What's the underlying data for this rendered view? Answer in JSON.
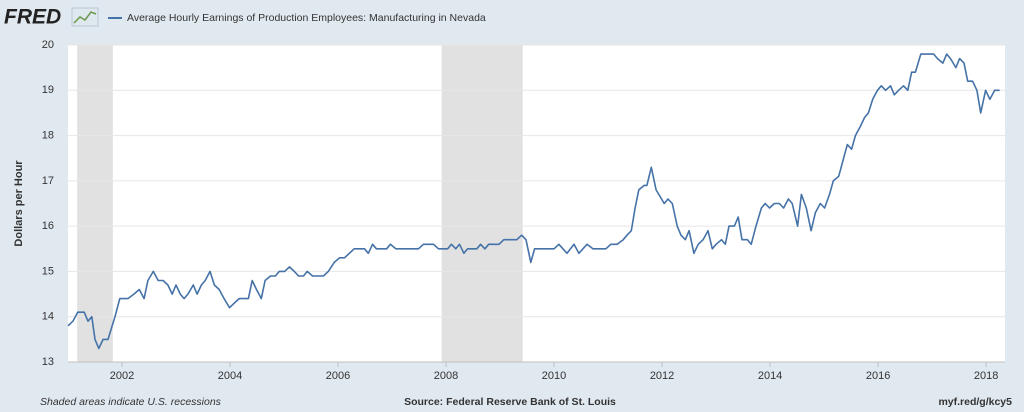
{
  "chart_data": {
    "type": "line",
    "logo": "FRED",
    "ylabel": "Dollars per Hour",
    "footnote": "Shaded areas indicate U.S. recessions",
    "source": "Source: Federal Reserve Bank of St. Louis",
    "url": "myf.red/g/kcy5",
    "xlim": [
      2001.0,
      2018.35
    ],
    "xticks": [
      2002,
      2004,
      2006,
      2008,
      2010,
      2012,
      2014,
      2016,
      2018
    ],
    "ylim": [
      13,
      20
    ],
    "yticks": [
      13,
      14,
      15,
      16,
      17,
      18,
      19,
      20
    ],
    "grid": true,
    "recessions": [
      [
        2001.17,
        2001.83
      ],
      [
        2007.92,
        2009.42
      ]
    ],
    "recession_color": "#e1e1e1",
    "x": [
      2001.0,
      2001.09,
      2001.18,
      2001.3,
      2001.37,
      2001.44,
      2001.5,
      2001.57,
      2001.65,
      2001.74,
      2001.87,
      2001.96,
      2002.11,
      2002.22,
      2002.32,
      2002.41,
      2002.48,
      2002.58,
      2002.67,
      2002.76,
      2002.85,
      2002.93,
      2003.0,
      2003.08,
      2003.15,
      2003.22,
      2003.32,
      2003.39,
      2003.47,
      2003.54,
      2003.63,
      2003.71,
      2003.8,
      2003.89,
      2003.99,
      2004.08,
      2004.17,
      2004.34,
      2004.41,
      2004.49,
      2004.58,
      2004.65,
      2004.75,
      2004.84,
      2004.91,
      2005.01,
      2005.1,
      2005.19,
      2005.27,
      2005.36,
      2005.43,
      2005.53,
      2005.73,
      2005.82,
      2005.93,
      2006.03,
      2006.12,
      2006.21,
      2006.3,
      2006.49,
      2006.56,
      2006.64,
      2006.71,
      2006.9,
      2006.97,
      2007.07,
      2007.49,
      2007.58,
      2007.77,
      2007.86,
      2007.96,
      2008.03,
      2008.1,
      2008.18,
      2008.25,
      2008.33,
      2008.4,
      2008.57,
      2008.64,
      2008.72,
      2008.79,
      2008.98,
      2009.07,
      2009.31,
      2009.4,
      2009.48,
      2009.57,
      2009.64,
      2010.0,
      2010.09,
      2010.24,
      2010.37,
      2010.46,
      2010.61,
      2010.72,
      2010.96,
      2011.05,
      2011.17,
      2011.28,
      2011.35,
      2011.43,
      2011.5,
      2011.57,
      2011.67,
      2011.72,
      2011.8,
      2011.89,
      2011.94,
      2012.04,
      2012.11,
      2012.19,
      2012.28,
      2012.35,
      2012.43,
      2012.5,
      2012.59,
      2012.67,
      2012.76,
      2012.85,
      2012.93,
      2013.0,
      2013.1,
      2013.17,
      2013.24,
      2013.34,
      2013.41,
      2013.48,
      2013.58,
      2013.65,
      2013.74,
      2013.84,
      2013.91,
      2013.99,
      2014.08,
      2014.17,
      2014.25,
      2014.34,
      2014.41,
      2014.51,
      2014.58,
      2014.67,
      2014.76,
      2014.84,
      2014.93,
      2015.01,
      2015.1,
      2015.17,
      2015.27,
      2015.34,
      2015.43,
      2015.51,
      2015.58,
      2015.67,
      2015.75,
      2015.82,
      2015.9,
      2015.99,
      2016.06,
      2016.14,
      2016.23,
      2016.3,
      2016.38,
      2016.47,
      2016.55,
      2016.62,
      2016.69,
      2016.79,
      2016.95,
      2017.03,
      2017.1,
      2017.2,
      2017.27,
      2017.34,
      2017.44,
      2017.51,
      2017.59,
      2017.66,
      2017.75,
      2017.83,
      2017.9,
      2017.99,
      2018.07,
      2018.16,
      2018.25
    ],
    "series": [
      {
        "name": "Average Hourly Earnings of Production Employees: Manufacturing in Nevada",
        "color": "#4572a7",
        "values": [
          13.8,
          13.9,
          14.1,
          14.1,
          13.9,
          14.0,
          13.5,
          13.3,
          13.5,
          13.5,
          14.0,
          14.4,
          14.4,
          14.5,
          14.6,
          14.4,
          14.8,
          15.0,
          14.8,
          14.8,
          14.7,
          14.5,
          14.7,
          14.5,
          14.4,
          14.5,
          14.7,
          14.5,
          14.7,
          14.8,
          15.0,
          14.7,
          14.6,
          14.4,
          14.2,
          14.3,
          14.4,
          14.4,
          14.8,
          14.6,
          14.4,
          14.8,
          14.9,
          14.9,
          15.0,
          15.0,
          15.1,
          15.0,
          14.9,
          14.9,
          15.0,
          14.9,
          14.9,
          15.0,
          15.2,
          15.3,
          15.3,
          15.4,
          15.5,
          15.5,
          15.4,
          15.6,
          15.5,
          15.5,
          15.6,
          15.5,
          15.5,
          15.6,
          15.6,
          15.5,
          15.5,
          15.5,
          15.6,
          15.5,
          15.6,
          15.4,
          15.5,
          15.5,
          15.6,
          15.5,
          15.6,
          15.6,
          15.7,
          15.7,
          15.8,
          15.7,
          15.2,
          15.5,
          15.5,
          15.6,
          15.4,
          15.6,
          15.4,
          15.6,
          15.5,
          15.5,
          15.6,
          15.6,
          15.7,
          15.8,
          15.9,
          16.4,
          16.8,
          16.9,
          16.9,
          17.3,
          16.8,
          16.7,
          16.5,
          16.6,
          16.5,
          16.0,
          15.8,
          15.7,
          15.9,
          15.4,
          15.6,
          15.7,
          15.9,
          15.5,
          15.6,
          15.7,
          15.6,
          16.0,
          16.0,
          16.2,
          15.7,
          15.7,
          15.6,
          16.0,
          16.4,
          16.5,
          16.4,
          16.5,
          16.5,
          16.4,
          16.6,
          16.5,
          16.0,
          16.7,
          16.4,
          15.9,
          16.3,
          16.5,
          16.4,
          16.7,
          17.0,
          17.1,
          17.4,
          17.8,
          17.7,
          18.0,
          18.2,
          18.4,
          18.5,
          18.8,
          19.0,
          19.1,
          19.0,
          19.1,
          18.9,
          19.0,
          19.1,
          19.0,
          19.4,
          19.4,
          19.8,
          19.8,
          19.8,
          19.7,
          19.6,
          19.8,
          19.7,
          19.5,
          19.7,
          19.6,
          19.2,
          19.2,
          19.0,
          18.5,
          19.0,
          18.8,
          19.0,
          19.0
        ]
      }
    ]
  }
}
